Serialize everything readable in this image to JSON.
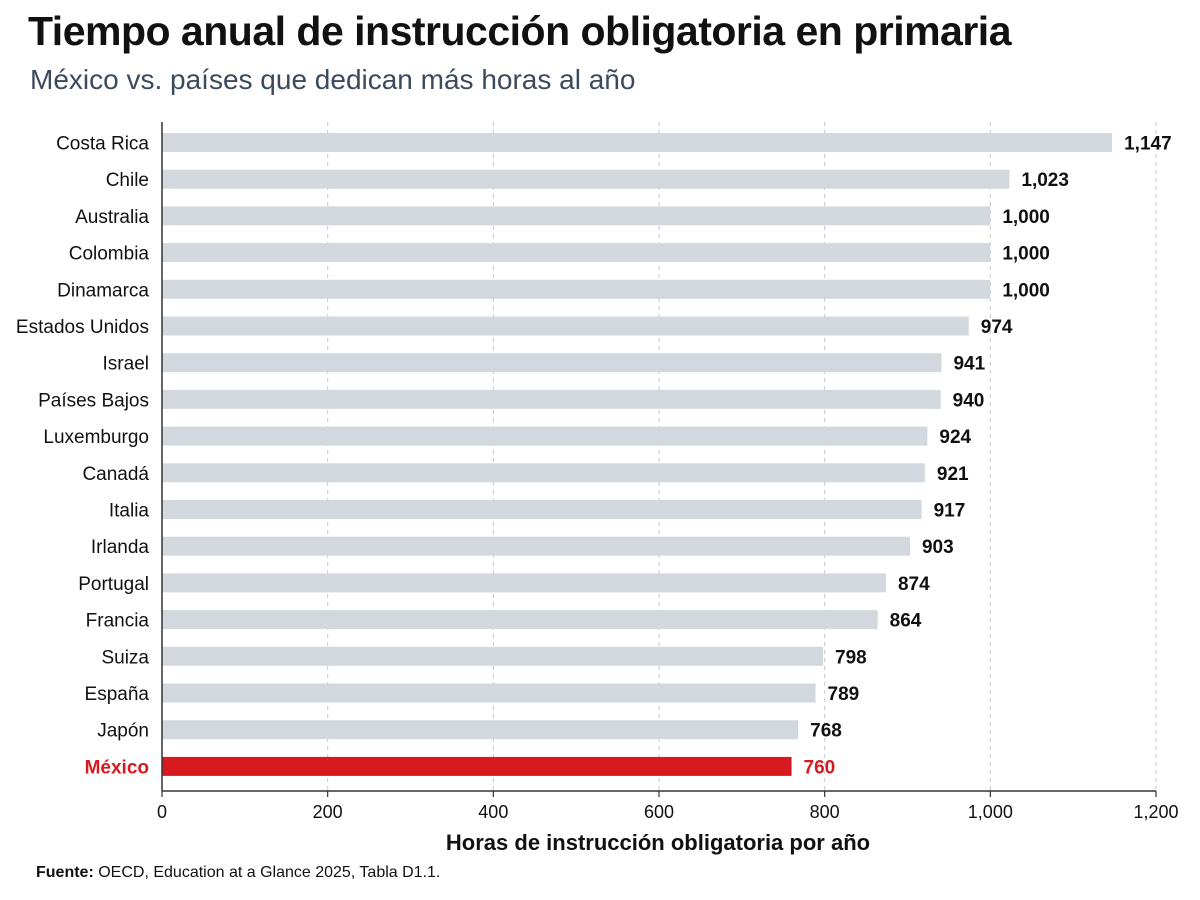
{
  "title": "Tiempo anual de instrucción obligatoria en primaria",
  "subtitle": "México vs. países que dedican más horas al año",
  "source_label": "Fuente:",
  "source_text": "OECD, Education at a Glance 2025, Tabla D1.1.",
  "colors": {
    "bar": "#d3d8de",
    "highlight": "#d71920",
    "text": "#111111",
    "grid": "#c8c8c8"
  },
  "chart_data": {
    "type": "bar",
    "orientation": "horizontal",
    "categories": [
      "Costa Rica",
      "Chile",
      "Australia",
      "Colombia",
      "Dinamarca",
      "Estados Unidos",
      "Israel",
      "Países Bajos",
      "Luxemburgo",
      "Canadá",
      "Italia",
      "Irlanda",
      "Portugal",
      "Francia",
      "Suiza",
      "España",
      "Japón",
      "México"
    ],
    "values": [
      1147,
      1023,
      1000,
      1000,
      1000,
      974,
      941,
      940,
      924,
      921,
      917,
      903,
      874,
      864,
      798,
      789,
      768,
      760
    ],
    "value_labels": [
      "1,147",
      "1,023",
      "1,000",
      "1,000",
      "1,000",
      "974",
      "941",
      "940",
      "924",
      "921",
      "917",
      "903",
      "874",
      "864",
      "798",
      "789",
      "768",
      "760"
    ],
    "highlight": "México",
    "xlabel": "Horas de instrucción obligatoria por año",
    "ylabel": "",
    "xlim": [
      0,
      1200
    ],
    "xticks": [
      0,
      200,
      400,
      600,
      800,
      1000,
      1200
    ],
    "xtick_labels": [
      "0",
      "200",
      "400",
      "600",
      "800",
      "1,000",
      "1,200"
    ],
    "grid": "vertical dashed"
  }
}
